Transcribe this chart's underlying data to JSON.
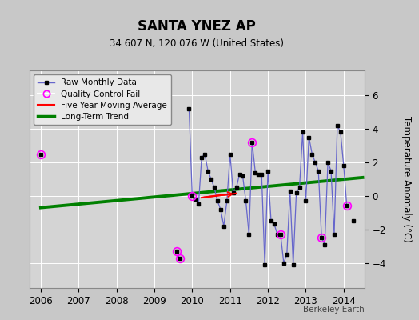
{
  "title": "SANTA YNEZ AP",
  "subtitle": "34.607 N, 120.076 W (United States)",
  "ylabel": "Temperature Anomaly (°C)",
  "credit": "Berkeley Earth",
  "xlim": [
    2005.7,
    2014.55
  ],
  "ylim": [
    -5.5,
    7.5
  ],
  "yticks": [
    -4,
    -2,
    0,
    2,
    4,
    6
  ],
  "xticks": [
    2006,
    2007,
    2008,
    2009,
    2010,
    2011,
    2012,
    2013,
    2014
  ],
  "bg_color": "#c8c8c8",
  "plot_bg_color": "#d4d4d4",
  "line_color": "#6666cc",
  "segments": [
    {
      "x": [
        2006.0
      ],
      "y": [
        2.5
      ]
    },
    {
      "x": [
        2009.583,
        2009.667
      ],
      "y": [
        -3.3,
        -3.75
      ]
    },
    {
      "x": [
        2009.917,
        2010.0,
        2010.083,
        2010.167,
        2010.25,
        2010.333,
        2010.417,
        2010.5,
        2010.583,
        2010.667,
        2010.75,
        2010.833,
        2010.917,
        2011.0,
        2011.083,
        2011.167,
        2011.25,
        2011.333,
        2011.417,
        2011.5,
        2011.583,
        2011.667,
        2011.75,
        2011.833,
        2011.917,
        2012.0,
        2012.083,
        2012.167,
        2012.25,
        2012.333,
        2012.417,
        2012.5,
        2012.583,
        2012.667,
        2012.75,
        2012.833,
        2012.917,
        2013.0,
        2013.083,
        2013.167,
        2013.25,
        2013.333,
        2013.417,
        2013.5,
        2013.583,
        2013.667,
        2013.75,
        2013.833,
        2013.917,
        2014.0,
        2014.083
      ],
      "y": [
        5.2,
        0.0,
        -0.2,
        -0.5,
        2.3,
        2.5,
        1.5,
        1.0,
        0.5,
        -0.3,
        -0.8,
        -1.8,
        -0.3,
        2.5,
        0.2,
        0.5,
        1.3,
        1.2,
        -0.3,
        -2.3,
        3.2,
        1.4,
        1.3,
        1.3,
        -4.1,
        1.5,
        -1.5,
        -1.7,
        -2.3,
        -2.3,
        -4.0,
        -3.5,
        0.3,
        -4.1,
        0.2,
        0.5,
        3.8,
        -0.3,
        3.5,
        2.5,
        2.0,
        1.5,
        -2.5,
        -2.9,
        2.0,
        1.5,
        -2.3,
        4.2,
        3.8,
        1.8,
        -0.6
      ]
    },
    {
      "x": [
        2014.25
      ],
      "y": [
        -1.5
      ]
    }
  ],
  "qc_fail_points": [
    [
      2006.0,
      2.5
    ],
    [
      2009.583,
      -3.3
    ],
    [
      2009.667,
      -3.75
    ],
    [
      2010.0,
      0.0
    ],
    [
      2011.583,
      3.2
    ],
    [
      2012.333,
      -2.3
    ],
    [
      2013.417,
      -2.5
    ],
    [
      2014.083,
      -0.6
    ]
  ],
  "moving_avg_x": [
    2010.25,
    2010.583,
    2010.75,
    2011.0,
    2011.167
  ],
  "moving_avg_y": [
    -0.1,
    0.0,
    0.05,
    0.1,
    0.15
  ],
  "trend_x": [
    2006.0,
    2014.5
  ],
  "trend_y": [
    -0.7,
    1.1
  ],
  "legend_bg": "#e8e8e8"
}
